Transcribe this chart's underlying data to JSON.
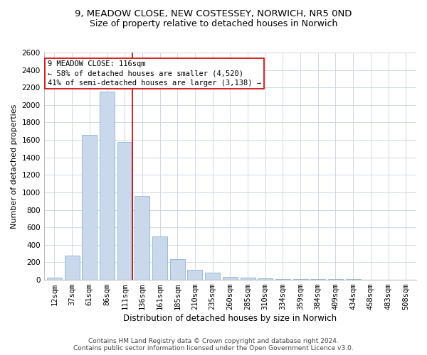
{
  "title1": "9, MEADOW CLOSE, NEW COSTESSEY, NORWICH, NR5 0ND",
  "title2": "Size of property relative to detached houses in Norwich",
  "xlabel": "Distribution of detached houses by size in Norwich",
  "ylabel": "Number of detached properties",
  "categories": [
    "12sqm",
    "37sqm",
    "61sqm",
    "86sqm",
    "111sqm",
    "136sqm",
    "161sqm",
    "185sqm",
    "210sqm",
    "235sqm",
    "260sqm",
    "285sqm",
    "310sqm",
    "334sqm",
    "359sqm",
    "384sqm",
    "409sqm",
    "434sqm",
    "458sqm",
    "483sqm",
    "508sqm"
  ],
  "values": [
    25,
    280,
    1660,
    2150,
    1580,
    960,
    500,
    240,
    115,
    85,
    35,
    25,
    20,
    12,
    8,
    6,
    5,
    5,
    4,
    4,
    4
  ],
  "bar_color": "#c9d9eb",
  "bar_edge_color": "#7aaaca",
  "vline_color": "#cc0000",
  "annotation_box_color": "#ffffff",
  "annotation_box_edge": "#cc0000",
  "annotation_text1": "9 MEADOW CLOSE: 116sqm",
  "annotation_text2": "← 58% of detached houses are smaller (4,520)",
  "annotation_text3": "41% of semi-detached houses are larger (3,138) →",
  "grid_color": "#d0d8e8",
  "footer1": "Contains HM Land Registry data © Crown copyright and database right 2024.",
  "footer2": "Contains public sector information licensed under the Open Government Licence v3.0.",
  "ylim": [
    0,
    2600
  ],
  "yticks": [
    0,
    200,
    400,
    600,
    800,
    1000,
    1200,
    1400,
    1600,
    1800,
    2000,
    2200,
    2400,
    2600
  ],
  "title1_fontsize": 9.5,
  "title2_fontsize": 9,
  "xlabel_fontsize": 8.5,
  "ylabel_fontsize": 8,
  "tick_fontsize": 7.5,
  "annotation_fontsize": 7.5,
  "footer_fontsize": 6.5
}
